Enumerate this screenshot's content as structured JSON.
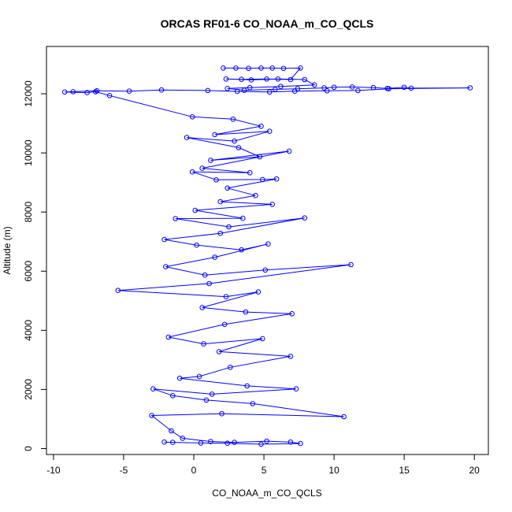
{
  "chart_data": {
    "type": "scatter",
    "title": "ORCAS RF01-6 CO_NOAA_m_CO_QCLS",
    "xlabel": "CO_NOAA_m_CO_QCLS",
    "ylabel": "Altitude (m)",
    "xlim": [
      -10.5,
      21
    ],
    "ylim": [
      -200,
      13600
    ],
    "x_ticks": [
      -10,
      -5,
      0,
      5,
      10,
      15,
      20
    ],
    "x_tick_labels": [
      "-10",
      "-5",
      "0",
      "5",
      "10",
      "15",
      "20"
    ],
    "y_ticks": [
      0,
      2000,
      4000,
      6000,
      8000,
      10000,
      12000
    ],
    "y_tick_labels": [
      "0",
      "2000",
      "4000",
      "6000",
      "8000",
      "10000",
      "12000"
    ],
    "grid": false,
    "legend": "none",
    "marker": "open-circle",
    "connected": true,
    "color": "#0000ff",
    "series": [
      {
        "points": [
          [
            2.1,
            12870
          ],
          [
            3.0,
            12870
          ],
          [
            3.9,
            12860
          ],
          [
            4.8,
            12870
          ],
          [
            5.6,
            12870
          ],
          [
            6.4,
            12860
          ],
          [
            7.6,
            12870
          ],
          [
            6.9,
            12480
          ],
          [
            5.2,
            12500
          ],
          [
            3.4,
            12490
          ],
          [
            2.3,
            12500
          ],
          [
            4.1,
            12470
          ],
          [
            6.0,
            12500
          ],
          [
            7.9,
            12480
          ],
          [
            8.6,
            12300
          ],
          [
            6.2,
            12250
          ],
          [
            4.0,
            12210
          ],
          [
            2.4,
            12180
          ],
          [
            3.6,
            12120
          ],
          [
            5.8,
            12150
          ],
          [
            7.4,
            12170
          ],
          [
            9.3,
            12200
          ],
          [
            10.0,
            12220
          ],
          [
            11.3,
            12230
          ],
          [
            12.8,
            12210
          ],
          [
            13.8,
            12180
          ],
          [
            15.0,
            12220
          ],
          [
            15.5,
            12190
          ],
          [
            19.7,
            12200
          ],
          [
            13.9,
            12170
          ],
          [
            11.7,
            12110
          ],
          [
            9.5,
            12100
          ],
          [
            7.2,
            12090
          ],
          [
            5.4,
            12060
          ],
          [
            3.1,
            12080
          ],
          [
            1.0,
            12110
          ],
          [
            -2.3,
            12130
          ],
          [
            -4.6,
            12090
          ],
          [
            -6.9,
            12100
          ],
          [
            -8.6,
            12070
          ],
          [
            -9.2,
            12060
          ],
          [
            -7.6,
            12040
          ],
          [
            -7.0,
            12070
          ],
          [
            -6.0,
            11940
          ],
          [
            -0.1,
            11220
          ],
          [
            2.8,
            11140
          ],
          [
            4.8,
            10900
          ],
          [
            1.5,
            10620
          ],
          [
            5.4,
            10730
          ],
          [
            2.9,
            10400
          ],
          [
            -0.5,
            10520
          ],
          [
            3.2,
            10180
          ],
          [
            4.7,
            9870
          ],
          [
            1.2,
            9750
          ],
          [
            6.8,
            10060
          ],
          [
            0.6,
            9480
          ],
          [
            4.0,
            9330
          ],
          [
            -0.1,
            9360
          ],
          [
            1.6,
            9090
          ],
          [
            4.9,
            9100
          ],
          [
            5.9,
            9120
          ],
          [
            2.4,
            8810
          ],
          [
            4.4,
            8560
          ],
          [
            1.9,
            8350
          ],
          [
            5.6,
            8260
          ],
          [
            0.1,
            8060
          ],
          [
            3.5,
            7790
          ],
          [
            -1.3,
            7780
          ],
          [
            2.5,
            7500
          ],
          [
            7.9,
            7800
          ],
          [
            1.9,
            7280
          ],
          [
            -2.1,
            7070
          ],
          [
            0.2,
            6880
          ],
          [
            3.4,
            6720
          ],
          [
            5.3,
            6920
          ],
          [
            1.5,
            6470
          ],
          [
            -2.0,
            6150
          ],
          [
            0.8,
            5870
          ],
          [
            5.1,
            6040
          ],
          [
            11.2,
            6220
          ],
          [
            1.1,
            5580
          ],
          [
            -5.4,
            5350
          ],
          [
            2.3,
            5140
          ],
          [
            4.6,
            5300
          ],
          [
            0.6,
            4770
          ],
          [
            3.7,
            4620
          ],
          [
            7.0,
            4560
          ],
          [
            2.2,
            4200
          ],
          [
            -1.8,
            3770
          ],
          [
            0.7,
            3540
          ],
          [
            4.9,
            3720
          ],
          [
            1.8,
            3280
          ],
          [
            6.9,
            3120
          ],
          [
            2.6,
            2750
          ],
          [
            0.4,
            2440
          ],
          [
            -1.0,
            2380
          ],
          [
            3.8,
            2120
          ],
          [
            7.3,
            2020
          ],
          [
            1.3,
            1840
          ],
          [
            -2.9,
            2020
          ],
          [
            -1.5,
            1790
          ],
          [
            0.9,
            1640
          ],
          [
            4.2,
            1520
          ],
          [
            10.7,
            1080
          ],
          [
            2.0,
            1180
          ],
          [
            -3.0,
            1120
          ],
          [
            -1.6,
            600
          ],
          [
            -0.8,
            350
          ],
          [
            1.2,
            240
          ],
          [
            2.9,
            210
          ],
          [
            5.2,
            250
          ],
          [
            6.9,
            220
          ],
          [
            7.6,
            170
          ],
          [
            4.8,
            150
          ],
          [
            2.4,
            180
          ],
          [
            0.5,
            190
          ],
          [
            -1.5,
            210
          ],
          [
            -2.1,
            220
          ]
        ]
      }
    ]
  }
}
